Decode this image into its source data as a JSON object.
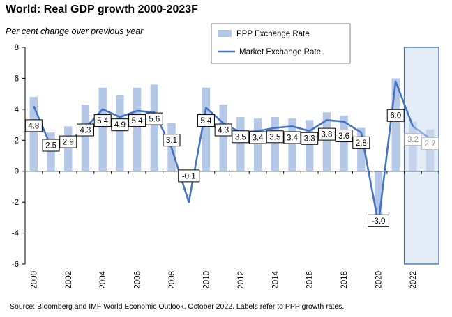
{
  "chart_data": {
    "type": "bar+line",
    "title": "World: Real GDP growth 2000-2023F",
    "subtitle": "Per cent change over previous year",
    "source": "Source: Bloomberg and IMF World Economic Outlook, October 2022.  Labels refer to PPP growth rates.",
    "years": [
      2000,
      2001,
      2002,
      2003,
      2004,
      2005,
      2006,
      2007,
      2008,
      2009,
      2010,
      2011,
      2012,
      2013,
      2014,
      2015,
      2016,
      2017,
      2018,
      2019,
      2020,
      2021,
      2022,
      2023
    ],
    "x_tick_labels": [
      "2000",
      "2002",
      "2004",
      "2006",
      "2008",
      "2010",
      "2012",
      "2014",
      "2016",
      "2018",
      "2020",
      "2022"
    ],
    "ylim": [
      -6,
      8
    ],
    "y_ticks": [
      "-6",
      "-4",
      "-2",
      "0",
      "2",
      "4",
      "6",
      "8"
    ],
    "forecast_years": [
      2022,
      2023
    ],
    "series": [
      {
        "name": "PPP Exchange Rate",
        "kind": "bar",
        "color": "#b4c7e7",
        "values": [
          4.8,
          2.5,
          2.9,
          4.3,
          5.4,
          4.9,
          5.4,
          5.6,
          3.1,
          -0.1,
          5.4,
          4.3,
          3.5,
          3.4,
          3.5,
          3.4,
          3.3,
          3.8,
          3.6,
          2.8,
          -3.0,
          6.0,
          3.2,
          2.7
        ],
        "labels": [
          "4.8",
          "2.5",
          "2.9",
          "4.3",
          "5.4",
          "4.9",
          "5.4",
          "5.6",
          "3.1",
          "-0.1",
          "5.4",
          "4.3",
          "3.5",
          "3.4",
          "3.5",
          "3.4",
          "3.3",
          "3.8",
          "3.6",
          "2.8",
          "-3.0",
          "6.0",
          "3.2",
          "2.7"
        ]
      },
      {
        "name": "Market Exchange Rate",
        "kind": "line",
        "color": "#4472c4",
        "values": [
          4.2,
          1.6,
          1.9,
          2.8,
          4.0,
          3.5,
          3.9,
          3.8,
          1.5,
          -2.0,
          4.1,
          3.1,
          2.5,
          2.6,
          2.8,
          2.9,
          2.6,
          3.3,
          3.2,
          2.5,
          -3.4,
          5.8,
          2.9,
          2.1
        ]
      }
    ],
    "legend": [
      "PPP Exchange Rate",
      "Market Exchange Rate"
    ],
    "legend_position": "top-center",
    "grid": false
  }
}
